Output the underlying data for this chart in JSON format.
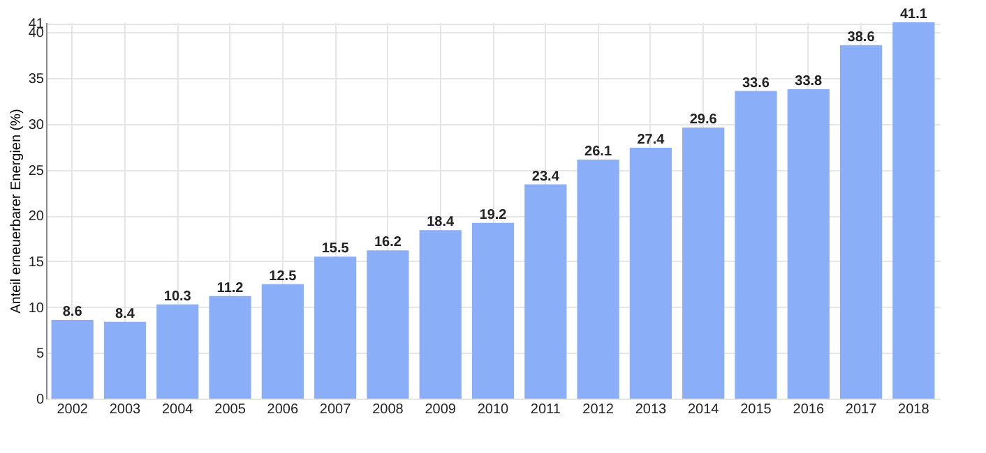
{
  "chart_data": {
    "type": "bar",
    "ylabel": "Anteil erneuerbarer Energien (%)",
    "categories": [
      "2002",
      "2003",
      "2004",
      "2005",
      "2006",
      "2007",
      "2008",
      "2009",
      "2010",
      "2011",
      "2012",
      "2013",
      "2014",
      "2015",
      "2016",
      "2017",
      "2018"
    ],
    "values": [
      8.6,
      8.4,
      10.3,
      11.2,
      12.5,
      15.5,
      16.2,
      18.4,
      19.2,
      23.4,
      26.1,
      27.4,
      29.6,
      33.6,
      33.8,
      38.6,
      41.1
    ],
    "color": "#8aaef7",
    "ylim": [
      0,
      41.1
    ],
    "yticks": [
      0,
      5,
      10,
      15,
      20,
      25,
      30,
      35,
      40,
      41
    ],
    "grid": true,
    "data_labels": true
  }
}
